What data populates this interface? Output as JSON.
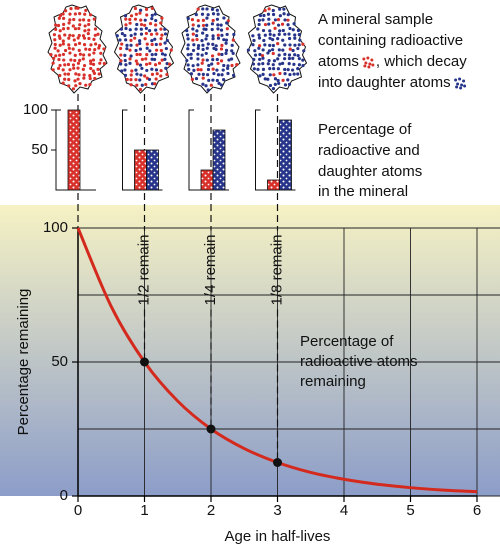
{
  "sample_caption": {
    "lines": [
      "A mineral sample",
      "containing radioactive",
      "atoms",
      ", which decay",
      "into daughter atoms"
    ]
  },
  "chart_data": [
    {
      "type": "bar",
      "caption": [
        "Percentage of",
        "radioactive and",
        "daughter atoms",
        "in the mineral"
      ],
      "categories": [
        null,
        null,
        null,
        null
      ],
      "series": [
        {
          "color": "#d8302a",
          "values": [
            100,
            50,
            25,
            12.5
          ]
        },
        {
          "color": "#26348a",
          "values": [
            0,
            50,
            75,
            87.5
          ]
        }
      ],
      "ylim": [
        0,
        100
      ],
      "yticks": [
        50,
        100
      ]
    },
    {
      "type": "line",
      "x_label": "Age in half-lives",
      "y_label": "Percentage remaining",
      "annotation": [
        "Percentage of",
        "radioactive atoms",
        "remaining"
      ],
      "x": [
        0,
        0.5,
        1,
        1.5,
        2,
        2.5,
        3,
        3.5,
        4,
        4.5,
        5,
        5.5,
        6
      ],
      "series": [
        {
          "color": "#d42a1e",
          "values": [
            100,
            70.7,
            50,
            35.4,
            25,
            17.7,
            12.5,
            8.8,
            6.25,
            4.4,
            3.1,
            2.2,
            1.6
          ]
        },
        {
          "type": "scatter",
          "color": "#111111",
          "x": [
            1,
            2,
            3
          ],
          "values": [
            50,
            25,
            12.5
          ],
          "labels": [
            "1/2 remain",
            "1/4 remain",
            "1/8 remain"
          ]
        }
      ],
      "xlim": [
        0,
        6
      ],
      "ylim": [
        0,
        100
      ],
      "xticks": [
        0,
        1,
        2,
        3,
        4,
        5,
        6
      ],
      "yticks": [
        0,
        50,
        100
      ],
      "minor_yticks": [
        25,
        75
      ],
      "grid": true,
      "background": [
        "#f6f2c4",
        "#8c9dc9"
      ]
    }
  ]
}
